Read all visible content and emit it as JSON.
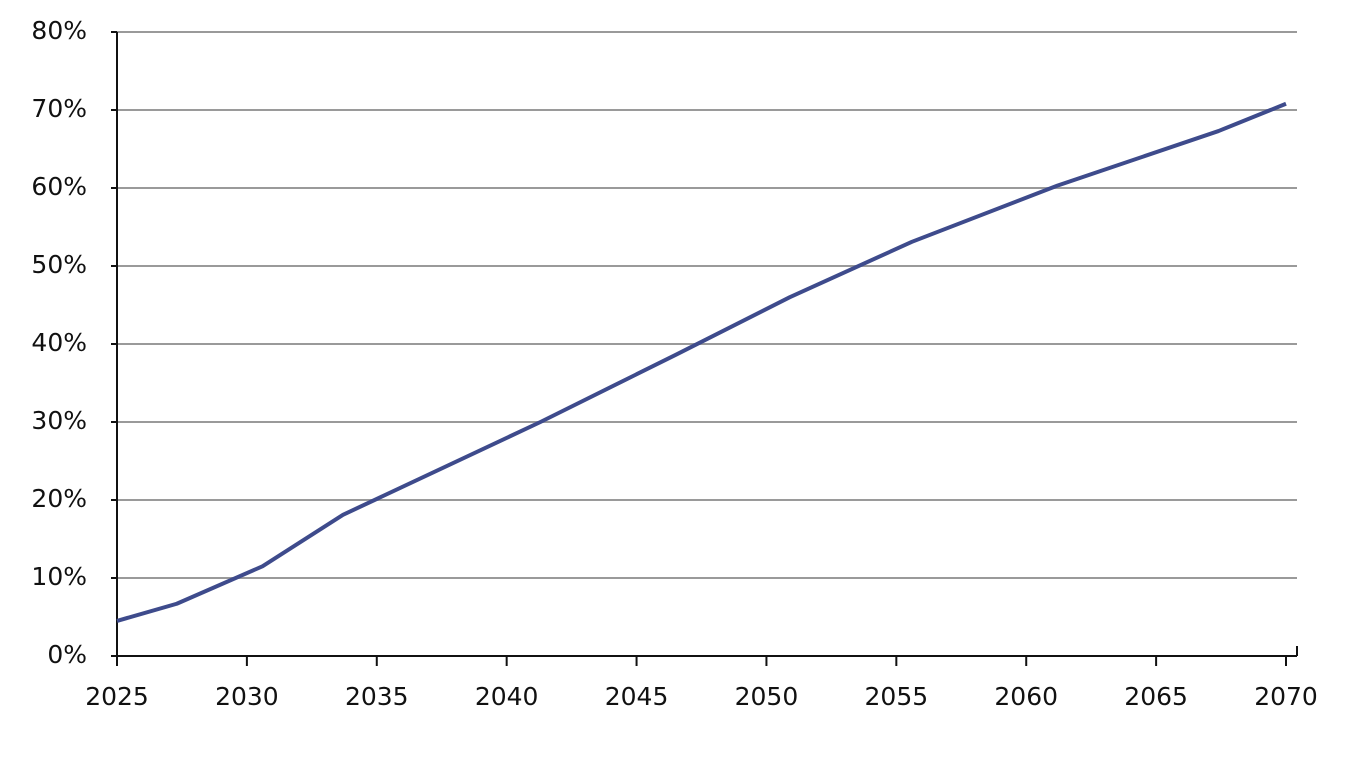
{
  "chart_data": {
    "type": "line",
    "x": [
      2025,
      2027.3,
      2030.6,
      2033.7,
      2041.3,
      2046.5,
      2050.9,
      2055.6,
      2061.2,
      2067.4,
      2070
    ],
    "series": [
      {
        "color": "#3e4b8c",
        "values": [
          4.5,
          6.7,
          11.5,
          18.1,
          30,
          38.6,
          46,
          53.1,
          60.3,
          67.3,
          70.8
        ]
      }
    ],
    "xlim": [
      2025,
      2070
    ],
    "xticks": [
      2025,
      2030,
      2035,
      2040,
      2045,
      2050,
      2055,
      2060,
      2065,
      2070
    ],
    "ylim": [
      0,
      80
    ],
    "yticks": [
      {
        "value": 0,
        "label": "0%"
      },
      {
        "value": 10,
        "label": "10%"
      },
      {
        "value": 20,
        "label": "20%"
      },
      {
        "value": 30,
        "label": "30%"
      },
      {
        "value": 40,
        "label": "40%"
      },
      {
        "value": 50,
        "label": "50%"
      },
      {
        "value": 60,
        "label": "60%"
      },
      {
        "value": 70,
        "label": "70%"
      },
      {
        "value": 80,
        "label": "80%"
      }
    ],
    "grid": true
  }
}
